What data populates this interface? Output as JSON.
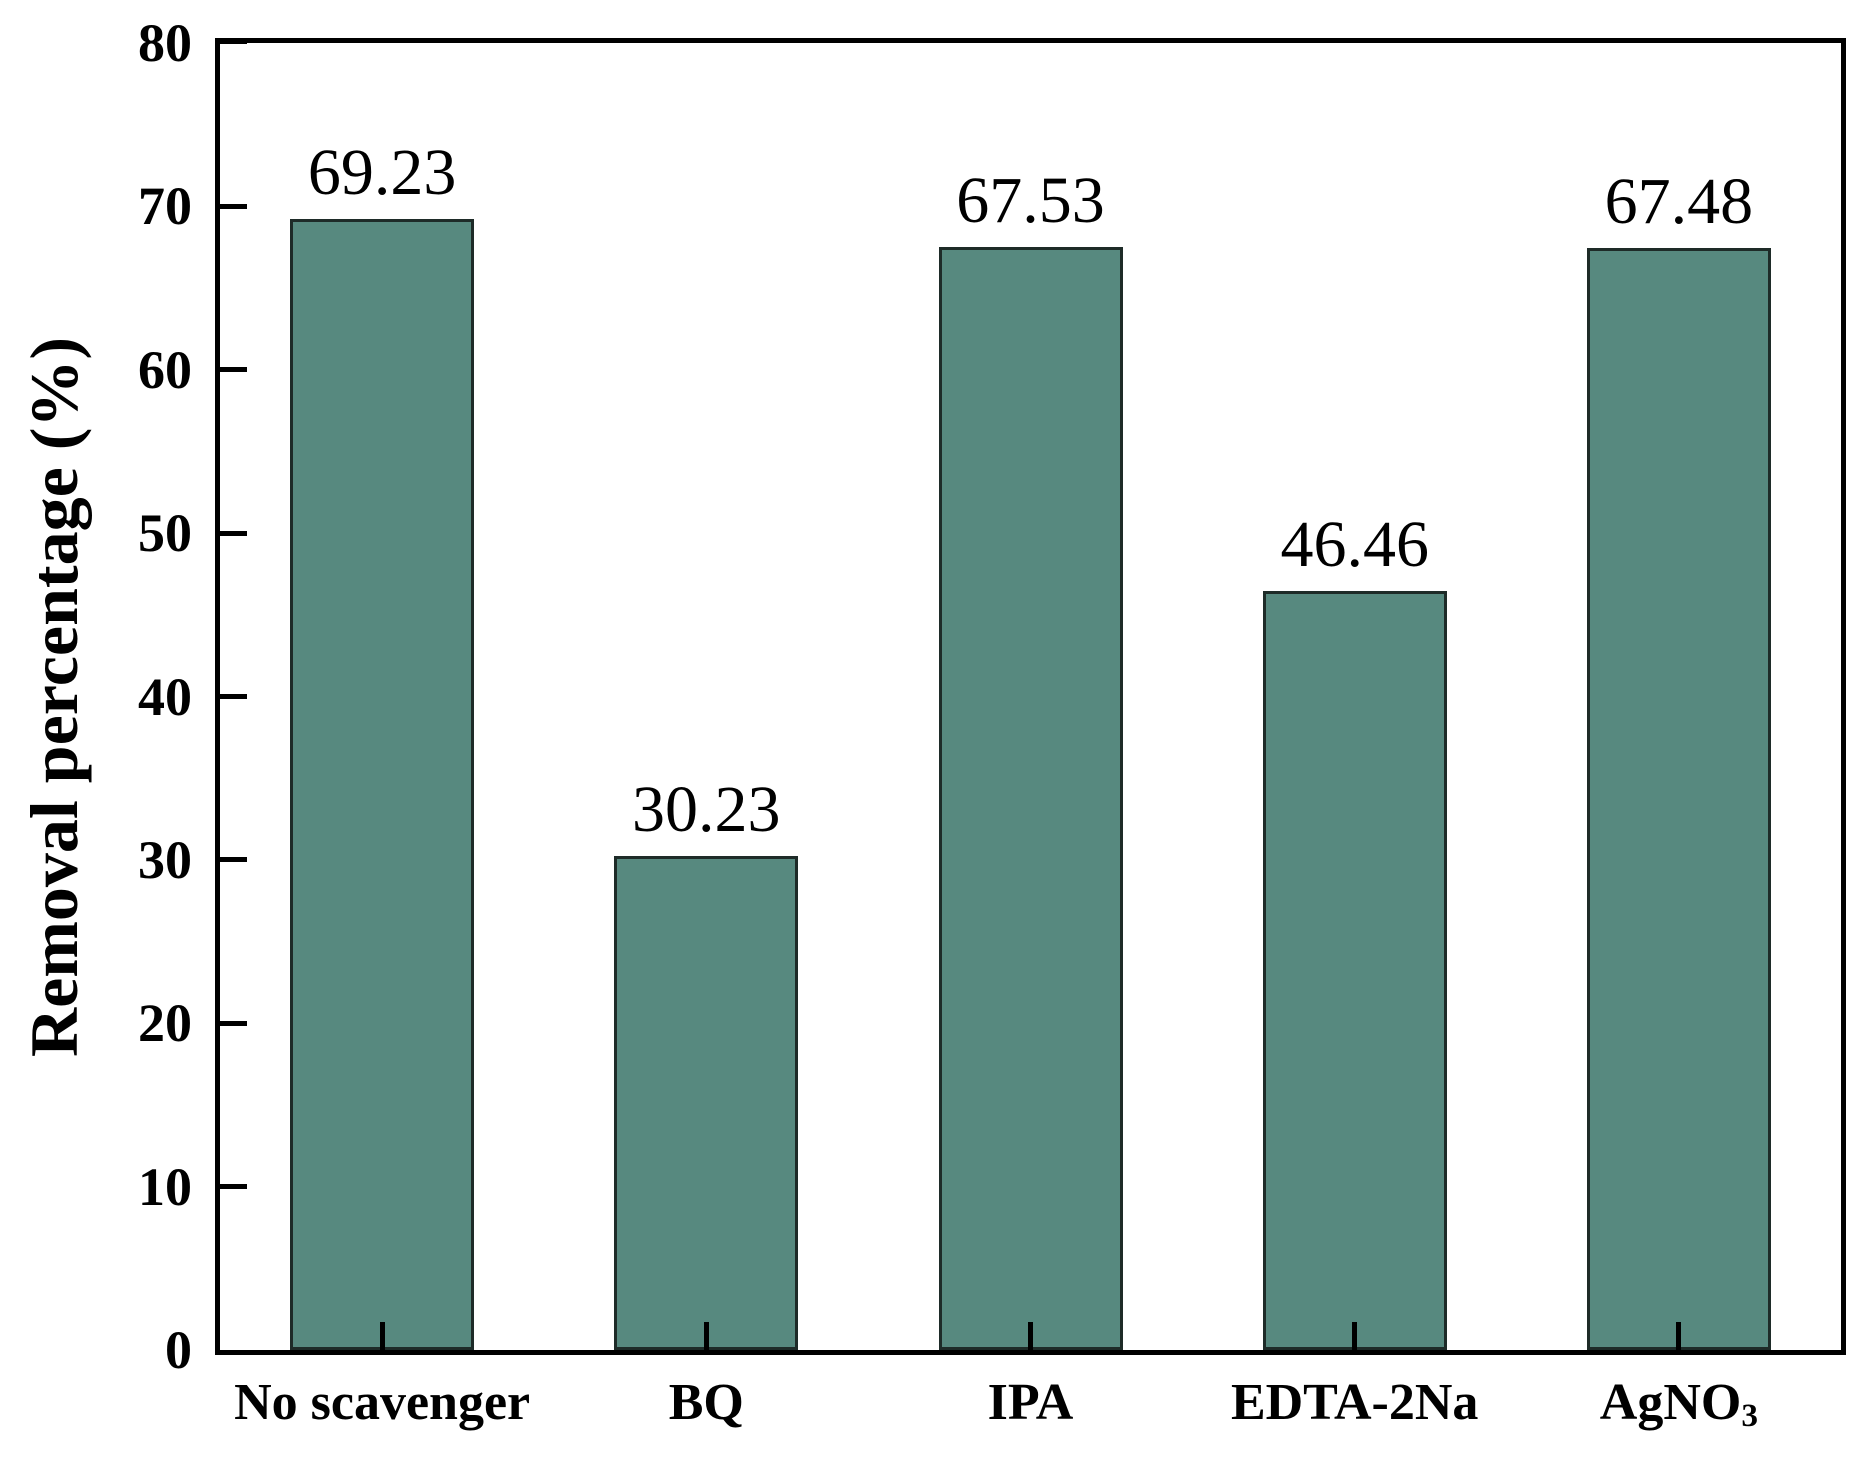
{
  "chart_data": {
    "type": "bar",
    "title": "",
    "categories": [
      "No scavenger",
      "BQ",
      "IPA",
      "EDTA-2Na",
      "AgNO3"
    ],
    "category_display": [
      {
        "text": "No scavenger",
        "sub": ""
      },
      {
        "text": "BQ",
        "sub": ""
      },
      {
        "text": "IPA",
        "sub": ""
      },
      {
        "text": "EDTA-2Na",
        "sub": ""
      },
      {
        "text": "AgNO",
        "sub": "3"
      }
    ],
    "values": [
      69.23,
      30.23,
      67.53,
      46.46,
      67.48
    ],
    "bar_labels": [
      "69.23",
      "30.23",
      "67.53",
      "46.46",
      "67.48"
    ],
    "xlabel": "",
    "ylabel": "Removal percentage (%)",
    "ylim": [
      0,
      80
    ],
    "yticks": [
      0,
      10,
      20,
      30,
      40,
      50,
      60,
      70,
      80
    ],
    "grid": false,
    "legend": null,
    "tick_direction": "in",
    "colors": {
      "bar_fill": "#57897f",
      "bar_border": "#1e2b28",
      "axis": "#000000",
      "text": "#000000",
      "background": "#ffffff"
    }
  }
}
